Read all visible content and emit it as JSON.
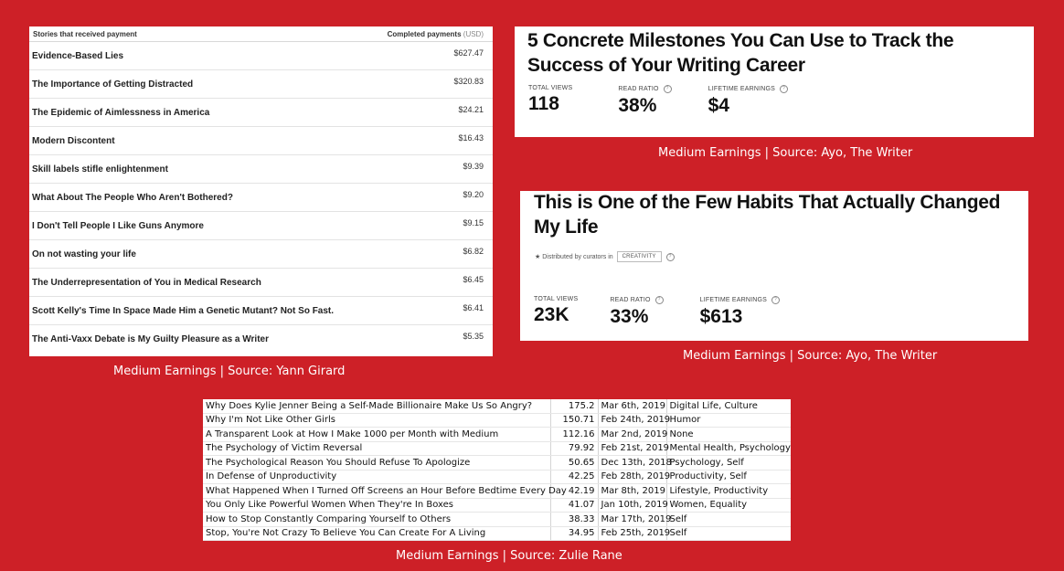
{
  "panel1": {
    "header_left": "Stories that received payment",
    "header_right": "Completed payments",
    "header_unit": "(USD)",
    "rows": [
      {
        "title": "Evidence-Based Lies",
        "amount": "$627.47"
      },
      {
        "title": "The Importance of Getting Distracted",
        "amount": "$320.83"
      },
      {
        "title": "The Epidemic of Aimlessness in America",
        "amount": "$24.21"
      },
      {
        "title": "Modern Discontent",
        "amount": "$16.43"
      },
      {
        "title": "Skill labels stifle enlightenment",
        "amount": "$9.39"
      },
      {
        "title": "What About The People Who Aren't Bothered?",
        "amount": "$9.20"
      },
      {
        "title": "I Don't Tell People I Like Guns Anymore",
        "amount": "$9.15"
      },
      {
        "title": "On not wasting your life",
        "amount": "$6.82"
      },
      {
        "title": "The Underrepresentation of You in Medical Research",
        "amount": "$6.45"
      },
      {
        "title": "Scott Kelly's Time In Space Made Him a Genetic Mutant? Not So Fast.",
        "amount": "$6.41"
      },
      {
        "title": "The Anti-Vaxx Debate is My Guilty Pleasure as a Writer",
        "amount": "$5.35"
      }
    ],
    "caption": "Medium Earnings | Source: Yann Girard"
  },
  "panel2": {
    "title": "5 Concrete Milestones You Can Use to Track the Success of Your Writing Career",
    "stats": [
      {
        "label": "TOTAL VIEWS",
        "value": "118",
        "help": false
      },
      {
        "label": "READ RATIO",
        "value": "38%",
        "help": true
      },
      {
        "label": "LIFETIME EARNINGS",
        "value": "$4",
        "help": true
      }
    ],
    "caption": "Medium Earnings | Source: Ayo, The Writer"
  },
  "panel3": {
    "title": "This is One of the Few Habits That Actually Changed My Life",
    "distributed_text": "★ Distributed by curators in",
    "tag": "CREATIVITY",
    "stats": [
      {
        "label": "TOTAL VIEWS",
        "value": "23K",
        "help": false
      },
      {
        "label": "READ RATIO",
        "value": "33%",
        "help": true
      },
      {
        "label": "LIFETIME EARNINGS",
        "value": "$613",
        "help": true
      }
    ],
    "caption": "Medium Earnings | Source: Ayo, The Writer"
  },
  "panel4": {
    "rows": [
      {
        "title": "Why Does Kylie Jenner Being a Self-Made Billionaire Make Us So Angry?",
        "earnings": "175.2",
        "date": "Mar 6th, 2019",
        "tags": "Digital Life, Culture"
      },
      {
        "title": "Why I'm Not Like Other Girls",
        "earnings": "150.71",
        "date": "Feb 24th, 2019",
        "tags": "Humor"
      },
      {
        "title": "A Transparent Look at How I Make 1000 per Month with Medium",
        "earnings": "112.16",
        "date": "Mar 2nd, 2019",
        "tags": "None"
      },
      {
        "title": "The Psychology of Victim Reversal",
        "earnings": "79.92",
        "date": "Feb 21st, 2019",
        "tags": "Mental Health, Psychology"
      },
      {
        "title": "The Psychological Reason You Should Refuse To Apologize",
        "earnings": "50.65",
        "date": "Dec 13th, 2018",
        "tags": "Psychology, Self"
      },
      {
        "title": "In Defense of Unproductivity",
        "earnings": "42.25",
        "date": "Feb 28th, 2019",
        "tags": "Productivity, Self"
      },
      {
        "title": "What Happened When I Turned Off Screens an Hour Before Bedtime Every Day",
        "earnings": "42.19",
        "date": "Mar 8th, 2019",
        "tags": "Lifestyle, Productivity"
      },
      {
        "title": "You Only Like Powerful Women When They're In Boxes",
        "earnings": "41.07",
        "date": "Jan 10th, 2019",
        "tags": "Women, Equality"
      },
      {
        "title": "How to Stop Constantly Comparing Yourself to Others",
        "earnings": "38.33",
        "date": "Mar 17th, 2019",
        "tags": "Self"
      },
      {
        "title": "Stop, You're Not Crazy To Believe You Can Create For A Living",
        "earnings": "34.95",
        "date": "Feb 25th, 2019",
        "tags": "Self"
      }
    ],
    "caption": "Medium Earnings | Source: Zulie Rane"
  }
}
